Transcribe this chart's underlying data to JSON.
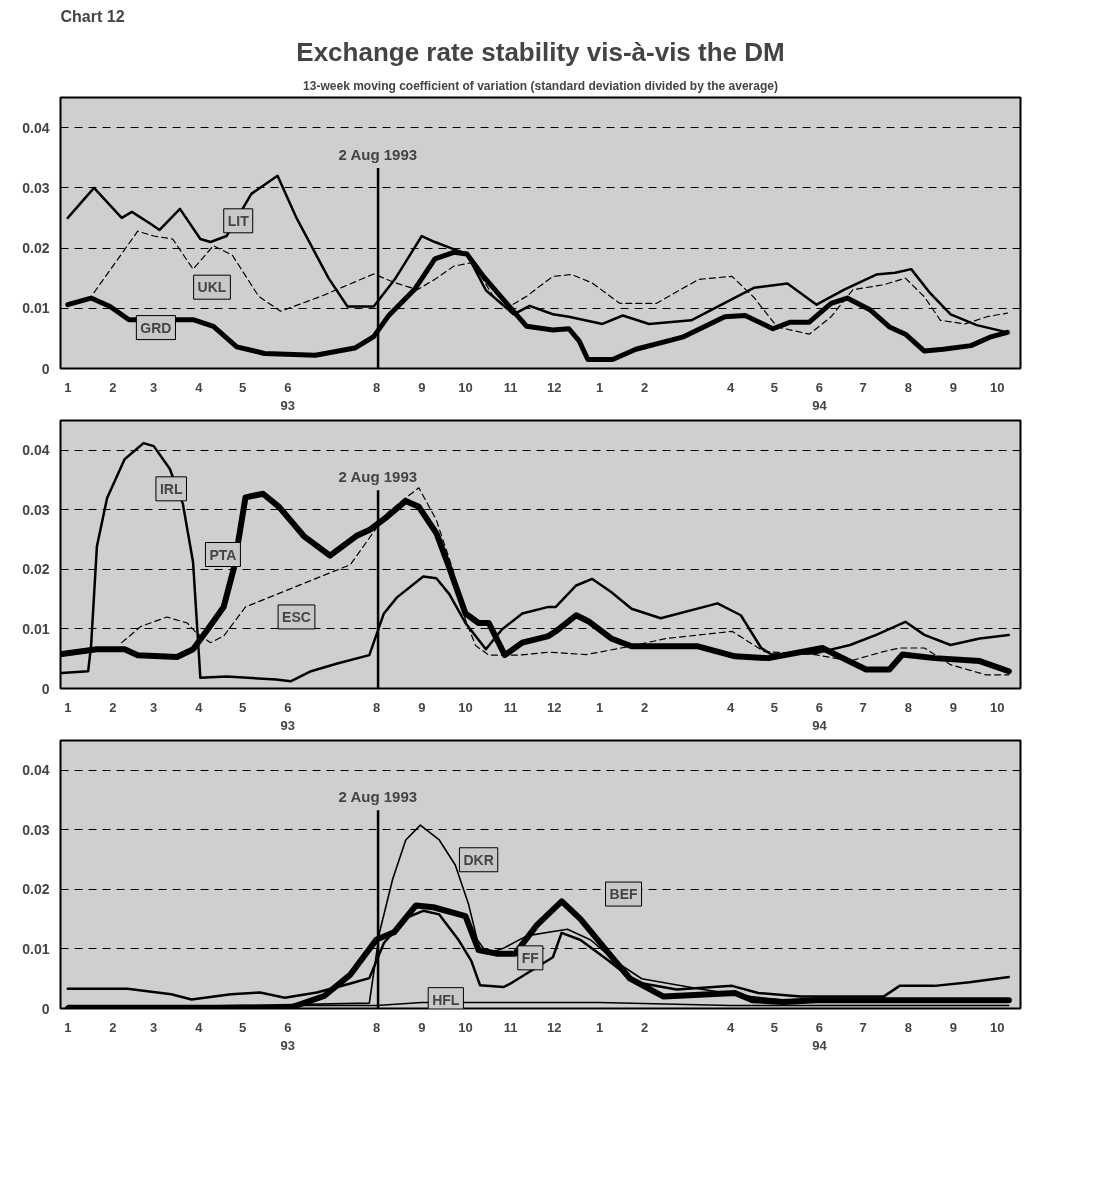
{
  "chart_data": [
    {
      "type": "line",
      "title": "Exchange rate stability vis-à-vis the DM",
      "subtitle": "13-week moving coefficient of variation (standard deviation divided by the average)",
      "annotations": [
        "Chart 12"
      ],
      "xlim": [
        "1992-12-27",
        "1994-10-17"
      ],
      "ylim": [
        0,
        0.045
      ],
      "yticks": [
        0,
        0.01,
        0.02,
        0.03,
        0.04
      ],
      "xticks": [
        {
          "value": "1993-01-01",
          "label": "1"
        },
        {
          "value": "1993-02-01",
          "label": "2"
        },
        {
          "value": "1993-03-01",
          "label": "3"
        },
        {
          "value": "1993-04-01",
          "label": "4"
        },
        {
          "value": "1993-05-01",
          "label": "5"
        },
        {
          "value": "1993-06-01",
          "label": "6\n93"
        },
        {
          "value": "1993-08-01",
          "label": "8"
        },
        {
          "value": "1993-09-01",
          "label": "9"
        },
        {
          "value": "1993-10-01",
          "label": "10"
        },
        {
          "value": "1993-11-01",
          "label": "11"
        },
        {
          "value": "1993-12-01",
          "label": "12"
        },
        {
          "value": "1994-01-01",
          "label": "1"
        },
        {
          "value": "1994-02-01",
          "label": "2"
        },
        {
          "value": "1994-04-01",
          "label": "4"
        },
        {
          "value": "1994-05-01",
          "label": "5"
        },
        {
          "value": "1994-06-01",
          "label": "6\n94"
        },
        {
          "value": "1994-07-01",
          "label": "7"
        },
        {
          "value": "1994-08-01",
          "label": "8"
        },
        {
          "value": "1994-09-01",
          "label": "9"
        },
        {
          "value": "1994-10-01",
          "label": "10"
        }
      ],
      "grid": "y",
      "line_style": "solid",
      "ref_lines": [
        {
          "axis": "x",
          "value": "1993-08-02",
          "label": "2 Aug 1993"
        }
      ],
      "series": [
        {
          "name": "LIT",
          "color": "#000000",
          "x": [
            "1993-01-01",
            "1993-01-19",
            "1993-02-07",
            "1993-02-14",
            "1993-02-27",
            "1993-03-05",
            "1993-03-19",
            "1993-04-02",
            "1993-04-09",
            "1993-04-20",
            "1993-05-07",
            "1993-05-25",
            "1993-06-07",
            "1993-06-29",
            "1993-07-12",
            "1993-07-30",
            "1993-08-14",
            "1993-09-01",
            "1993-09-10",
            "1993-09-21",
            "1993-10-02",
            "1993-10-15",
            "1993-11-03",
            "1993-11-14",
            "1993-11-30",
            "1993-12-11",
            "1994-01-03",
            "1994-01-17",
            "1994-02-04",
            "1994-03-05",
            "1994-04-06",
            "1994-04-17",
            "1994-05-10",
            "1994-05-30",
            "1994-06-18",
            "1994-07-10",
            "1994-07-23",
            "1994-08-03",
            "1994-08-16",
            "1994-08-30",
            "1994-09-17",
            "1994-10-08"
          ],
          "values": [
            0.025,
            0.03,
            0.025,
            0.026,
            0.024,
            0.023,
            0.0265,
            0.0215,
            0.021,
            0.022,
            0.029,
            0.032,
            0.025,
            0.015,
            0.0103,
            0.0103,
            0.015,
            0.022,
            0.021,
            0.02,
            0.019,
            0.013,
            0.009,
            0.0104,
            0.009,
            0.0086,
            0.0074,
            0.0088,
            0.0074,
            0.008,
            0.012,
            0.0134,
            0.0141,
            0.0106,
            0.0131,
            0.0156,
            0.0159,
            0.0165,
            0.0125,
            0.009,
            0.0072,
            0.006
          ]
        },
        {
          "name": "UKL",
          "color": "#000000",
          "line_style": "dashed",
          "x": [
            "1993-01-19",
            "1993-02-03",
            "1993-02-18",
            "1993-03-01",
            "1993-03-14",
            "1993-03-28",
            "1993-04-11",
            "1993-04-24",
            "1993-05-12",
            "1993-05-27",
            "1993-06-24",
            "1993-07-30",
            "1993-08-14",
            "1993-08-29",
            "1993-09-10",
            "1993-09-23",
            "1993-10-06",
            "1993-10-20",
            "1993-10-29",
            "1993-11-12",
            "1993-11-30",
            "1993-12-13",
            "1993-12-27",
            "1994-01-15",
            "1994-02-09",
            "1994-03-10",
            "1994-04-02",
            "1994-04-17",
            "1994-05-03",
            "1994-05-25",
            "1994-06-09",
            "1994-06-24",
            "1994-07-15",
            "1994-07-30",
            "1994-08-12",
            "1994-08-23",
            "1994-09-09",
            "1994-09-24",
            "1994-10-08"
          ],
          "values": [
            0.0126,
            0.0177,
            0.0228,
            0.022,
            0.0215,
            0.0165,
            0.0204,
            0.0188,
            0.012,
            0.0095,
            0.012,
            0.0157,
            0.0142,
            0.0131,
            0.0148,
            0.017,
            0.0176,
            0.012,
            0.01,
            0.012,
            0.0153,
            0.0156,
            0.0142,
            0.0108,
            0.0108,
            0.0148,
            0.0153,
            0.0118,
            0.0069,
            0.0057,
            0.0086,
            0.0131,
            0.0139,
            0.015,
            0.0119,
            0.008,
            0.0074,
            0.0086,
            0.0092
          ]
        },
        {
          "name": "GRD",
          "color": "#000000",
          "x": [
            "1993-01-01",
            "1993-01-17",
            "1993-01-30",
            "1993-02-12",
            "1993-03-28",
            "1993-04-11",
            "1993-04-27",
            "1993-05-16",
            "1993-06-20",
            "1993-07-17",
            "1993-07-30",
            "1993-08-09",
            "1993-08-27",
            "1993-09-10",
            "1993-09-23",
            "1993-10-02",
            "1993-10-13",
            "1993-10-29",
            "1993-11-12",
            "1993-11-30",
            "1993-12-11",
            "1993-12-18",
            "1993-12-24",
            "1994-01-10",
            "1994-01-26",
            "1994-02-27",
            "1994-03-28",
            "1994-04-11",
            "1994-04-30",
            "1994-05-12",
            "1994-05-25",
            "1994-06-09",
            "1994-06-20",
            "1994-07-06",
            "1994-07-19",
            "1994-07-30",
            "1994-08-12",
            "1994-08-25",
            "1994-09-13",
            "1994-09-26",
            "1994-10-08"
          ],
          "values": [
            0.0106,
            0.0117,
            0.0103,
            0.0081,
            0.0081,
            0.007,
            0.0036,
            0.0025,
            0.0022,
            0.0034,
            0.0053,
            0.0087,
            0.0131,
            0.0182,
            0.0193,
            0.019,
            0.0154,
            0.0109,
            0.007,
            0.0064,
            0.0066,
            0.0046,
            0.0015,
            0.0015,
            0.0032,
            0.0052,
            0.0086,
            0.0088,
            0.0066,
            0.0077,
            0.0077,
            0.0108,
            0.0117,
            0.0097,
            0.0069,
            0.0057,
            0.0029,
            0.0032,
            0.0038,
            0.0052,
            0.006
          ]
        }
      ]
    },
    {
      "type": "line",
      "xlim": [
        "1992-12-27",
        "1994-10-17"
      ],
      "ylim": [
        0,
        0.045
      ],
      "yticks": [
        0,
        0.01,
        0.02,
        0.03,
        0.04
      ],
      "xticks": [
        {
          "value": "1993-01-01",
          "label": "1"
        },
        {
          "value": "1993-02-01",
          "label": "2"
        },
        {
          "value": "1993-03-01",
          "label": "3"
        },
        {
          "value": "1993-04-01",
          "label": "4"
        },
        {
          "value": "1993-05-01",
          "label": "5"
        },
        {
          "value": "1993-06-01",
          "label": "6\n93"
        },
        {
          "value": "1993-08-01",
          "label": "8"
        },
        {
          "value": "1993-09-01",
          "label": "9"
        },
        {
          "value": "1993-10-01",
          "label": "10"
        },
        {
          "value": "1993-11-01",
          "label": "11"
        },
        {
          "value": "1993-12-01",
          "label": "12"
        },
        {
          "value": "1994-01-01",
          "label": "1"
        },
        {
          "value": "1994-02-01",
          "label": "2"
        },
        {
          "value": "1994-04-01",
          "label": "4"
        },
        {
          "value": "1994-05-01",
          "label": "5"
        },
        {
          "value": "1994-06-01",
          "label": "6\n94"
        },
        {
          "value": "1994-07-01",
          "label": "7"
        },
        {
          "value": "1994-08-01",
          "label": "8"
        },
        {
          "value": "1994-09-01",
          "label": "9"
        },
        {
          "value": "1994-10-01",
          "label": "10"
        }
      ],
      "grid": "y",
      "line_style": "solid",
      "ref_lines": [
        {
          "axis": "x",
          "value": "1993-08-02",
          "label": "2 Aug 1993"
        }
      ],
      "series": [
        {
          "name": "IRL",
          "color": "#000000",
          "x": [
            "1992-12-28",
            "1993-01-15",
            "1993-01-17",
            "1993-01-21",
            "1993-01-28",
            "1993-02-09",
            "1993-02-22",
            "1993-03-01",
            "1993-03-12",
            "1993-03-21",
            "1993-03-28",
            "1993-04-02",
            "1993-04-20",
            "1993-05-24",
            "1993-06-03",
            "1993-06-17",
            "1993-07-05",
            "1993-07-27",
            "1993-08-06",
            "1993-08-15",
            "1993-09-02",
            "1993-09-11",
            "1993-09-20",
            "1993-10-01",
            "1993-10-15",
            "1993-10-26",
            "1993-11-09",
            "1993-11-27",
            "1993-12-02",
            "1993-12-16",
            "1993-12-27",
            "1994-01-09",
            "1994-01-23",
            "1994-02-12",
            "1994-03-23",
            "1994-04-08",
            "1994-04-22",
            "1994-04-29",
            "1994-05-29",
            "1994-06-22",
            "1994-07-10",
            "1994-07-30",
            "1994-08-12",
            "1994-08-30",
            "1994-09-19",
            "1994-10-09"
          ],
          "values": [
            0.0026,
            0.0029,
            0.0072,
            0.0239,
            0.032,
            0.0385,
            0.0412,
            0.0407,
            0.0369,
            0.031,
            0.0212,
            0.0018,
            0.002,
            0.0015,
            0.0012,
            0.0029,
            0.0042,
            0.0056,
            0.0126,
            0.0153,
            0.0188,
            0.0185,
            0.0158,
            0.011,
            0.0066,
            0.0099,
            0.0126,
            0.0137,
            0.0137,
            0.0173,
            0.0184,
            0.0162,
            0.0134,
            0.0118,
            0.0143,
            0.0123,
            0.0068,
            0.0057,
            0.0059,
            0.0073,
            0.009,
            0.0112,
            0.009,
            0.0073,
            0.0084,
            0.009
          ]
        },
        {
          "name": "PTA",
          "color": "#000000",
          "x": [
            "1992-12-28",
            "1993-01-21",
            "1993-02-09",
            "1993-02-18",
            "1993-03-17",
            "1993-03-28",
            "1993-04-07",
            "1993-04-18",
            "1993-04-25",
            "1993-05-03",
            "1993-05-15",
            "1993-05-26",
            "1993-06-12",
            "1993-06-30",
            "1993-07-18",
            "1993-07-27",
            "1993-08-08",
            "1993-08-21",
            "1993-08-30",
            "1993-09-11",
            "1993-09-20",
            "1993-10-01",
            "1993-10-10",
            "1993-10-17",
            "1993-10-28",
            "1993-11-09",
            "1993-11-27",
            "1993-12-02",
            "1993-12-16",
            "1993-12-25",
            "1994-01-09",
            "1994-01-23",
            "1994-03-09",
            "1994-04-04",
            "1994-04-27",
            "1994-06-03",
            "1994-06-17",
            "1994-07-03",
            "1994-07-19",
            "1994-07-28",
            "1994-08-19",
            "1994-09-19",
            "1994-10-09"
          ],
          "values": [
            0.0058,
            0.0066,
            0.0066,
            0.0056,
            0.0053,
            0.0066,
            0.0099,
            0.0137,
            0.0202,
            0.0321,
            0.0327,
            0.0305,
            0.0256,
            0.0223,
            0.0256,
            0.0266,
            0.0288,
            0.0315,
            0.0305,
            0.0261,
            0.0202,
            0.0126,
            0.011,
            0.011,
            0.0056,
            0.0077,
            0.0088,
            0.0096,
            0.0123,
            0.0112,
            0.0084,
            0.0071,
            0.0071,
            0.0054,
            0.0051,
            0.0068,
            0.0051,
            0.0032,
            0.0032,
            0.0057,
            0.0051,
            0.0046,
            0.0029
          ]
        },
        {
          "name": "ESC",
          "color": "#000000",
          "line_style": "dashed",
          "x": [
            "1993-02-07",
            "1993-02-20",
            "1993-03-10",
            "1993-03-24",
            "1993-03-30",
            "1993-04-09",
            "1993-04-18",
            "1993-05-03",
            "1993-07-14",
            "1993-08-08",
            "1993-08-21",
            "1993-08-30",
            "1993-09-11",
            "1993-09-22",
            "1993-10-01",
            "1993-10-08",
            "1993-10-17",
            "1993-11-07",
            "1993-11-27",
            "1993-12-23",
            "1994-01-16",
            "1994-02-16",
            "1994-04-02",
            "1994-04-24",
            "1994-05-29",
            "1994-06-22",
            "1994-07-15",
            "1994-07-26",
            "1994-08-12",
            "1994-08-30",
            "1994-09-23",
            "1994-10-09"
          ],
          "values": [
            0.0077,
            0.0104,
            0.012,
            0.011,
            0.0094,
            0.0077,
            0.0088,
            0.0137,
            0.0208,
            0.0294,
            0.032,
            0.0337,
            0.0283,
            0.0202,
            0.0115,
            0.0072,
            0.0056,
            0.0056,
            0.0061,
            0.0057,
            0.0068,
            0.0084,
            0.0096,
            0.0062,
            0.0057,
            0.0046,
            0.0062,
            0.0068,
            0.0068,
            0.004,
            0.0023,
            0.0023
          ]
        }
      ]
    },
    {
      "type": "line",
      "xlim": [
        "1992-12-27",
        "1994-10-17"
      ],
      "ylim": [
        0,
        0.045
      ],
      "yticks": [
        0,
        0.01,
        0.02,
        0.03,
        0.04
      ],
      "xticks": [
        {
          "value": "1993-01-01",
          "label": "1"
        },
        {
          "value": "1993-02-01",
          "label": "2"
        },
        {
          "value": "1993-03-01",
          "label": "3"
        },
        {
          "value": "1993-04-01",
          "label": "4"
        },
        {
          "value": "1993-05-01",
          "label": "5"
        },
        {
          "value": "1993-06-01",
          "label": "6\n93"
        },
        {
          "value": "1993-08-01",
          "label": "8"
        },
        {
          "value": "1993-09-01",
          "label": "9"
        },
        {
          "value": "1993-10-01",
          "label": "10"
        },
        {
          "value": "1993-11-01",
          "label": "11"
        },
        {
          "value": "1993-12-01",
          "label": "12"
        },
        {
          "value": "1994-01-01",
          "label": "1"
        },
        {
          "value": "1994-02-01",
          "label": "2"
        },
        {
          "value": "1994-04-01",
          "label": "4"
        },
        {
          "value": "1994-05-01",
          "label": "5"
        },
        {
          "value": "1994-06-01",
          "label": "6\n94"
        },
        {
          "value": "1994-07-01",
          "label": "7"
        },
        {
          "value": "1994-08-01",
          "label": "8"
        },
        {
          "value": "1994-09-01",
          "label": "9"
        },
        {
          "value": "1994-10-01",
          "label": "10"
        }
      ],
      "grid": "y",
      "line_style": "solid",
      "ref_lines": [
        {
          "axis": "x",
          "value": "1993-08-02",
          "label": "2 Aug 1993"
        }
      ],
      "series": [
        {
          "name": "DKR",
          "color": "#000000",
          "x": [
            "1993-01-01",
            "1993-07-27",
            "1993-08-03",
            "1993-08-12",
            "1993-08-21",
            "1993-08-31",
            "1993-09-13",
            "1993-09-24",
            "1993-10-03",
            "1993-10-09",
            "1993-10-16",
            "1993-10-27",
            "1993-11-12",
            "1993-11-27",
            "1993-12-10",
            "1993-12-26",
            "1994-01-12",
            "1994-01-30",
            "1994-03-13",
            "1994-04-15",
            "1994-05-07",
            "1994-10-09"
          ],
          "values": [
            0,
            0.0009,
            0.0128,
            0.0217,
            0.0283,
            0.0308,
            0.0283,
            0.0241,
            0.0176,
            0.0116,
            0.0092,
            0.0101,
            0.0122,
            0.0128,
            0.0133,
            0.0115,
            0.0079,
            0.005,
            0.0032,
            0.002,
            0.0014,
            0.0014
          ]
        },
        {
          "name": "BEF",
          "color": "#000000",
          "x": [
            "1993-01-01",
            "1993-06-01",
            "1993-06-26",
            "1993-07-14",
            "1993-08-01",
            "1993-08-13",
            "1993-08-28",
            "1993-09-09",
            "1993-10-01",
            "1993-10-10",
            "1993-10-23",
            "1993-11-04",
            "1993-11-19",
            "1993-12-06",
            "1993-12-19",
            "1994-01-08",
            "1994-01-22",
            "1994-02-14",
            "1994-04-04",
            "1994-04-16",
            "1994-05-07",
            "1994-05-30",
            "1994-10-09"
          ],
          "values": [
            0,
            0,
            0.0021,
            0.0057,
            0.0116,
            0.0128,
            0.0173,
            0.017,
            0.0155,
            0.0098,
            0.0092,
            0.0092,
            0.014,
            0.018,
            0.015,
            0.0091,
            0.005,
            0.002,
            0.0026,
            0.0014,
            0.0011,
            0.0014,
            0.0014
          ]
        },
        {
          "name": "FF",
          "color": "#000000",
          "x": [
            "1993-01-01",
            "1993-02-11",
            "1993-03-13",
            "1993-03-27",
            "1993-04-23",
            "1993-05-13",
            "1993-05-30",
            "1993-06-21",
            "1993-07-14",
            "1993-07-27",
            "1993-08-06",
            "1993-08-21",
            "1993-09-02",
            "1993-09-13",
            "1993-09-26",
            "1993-10-05",
            "1993-10-11",
            "1993-10-27",
            "1993-11-01",
            "1993-11-30",
            "1993-12-06",
            "1993-12-19",
            "1994-01-08",
            "1994-01-26",
            "1994-02-23",
            "1994-04-02",
            "1994-04-20",
            "1994-05-19",
            "1994-07-15",
            "1994-07-26",
            "1994-08-19",
            "1994-09-12",
            "1994-10-09"
          ],
          "values": [
            0.0033,
            0.0033,
            0.0024,
            0.0015,
            0.0024,
            0.0027,
            0.0018,
            0.0027,
            0.0042,
            0.0051,
            0.011,
            0.0152,
            0.0164,
            0.0158,
            0.0116,
            0.008,
            0.0039,
            0.0036,
            0.0042,
            0.0086,
            0.0127,
            0.0115,
            0.0079,
            0.0044,
            0.0032,
            0.0038,
            0.0026,
            0.002,
            0.002,
            0.0038,
            0.0038,
            0.0044,
            0.0053
          ]
        },
        {
          "name": "HFL",
          "color": "#000000",
          "x": [
            "1993-01-01",
            "1993-08-01",
            "1993-09-01",
            "1993-11-01",
            "1994-01-01",
            "1994-04-01",
            "1994-10-09"
          ],
          "values": [
            0.0005,
            0.0005,
            0.001,
            0.001,
            0.001,
            0.0005,
            0.0005
          ]
        }
      ]
    }
  ]
}
